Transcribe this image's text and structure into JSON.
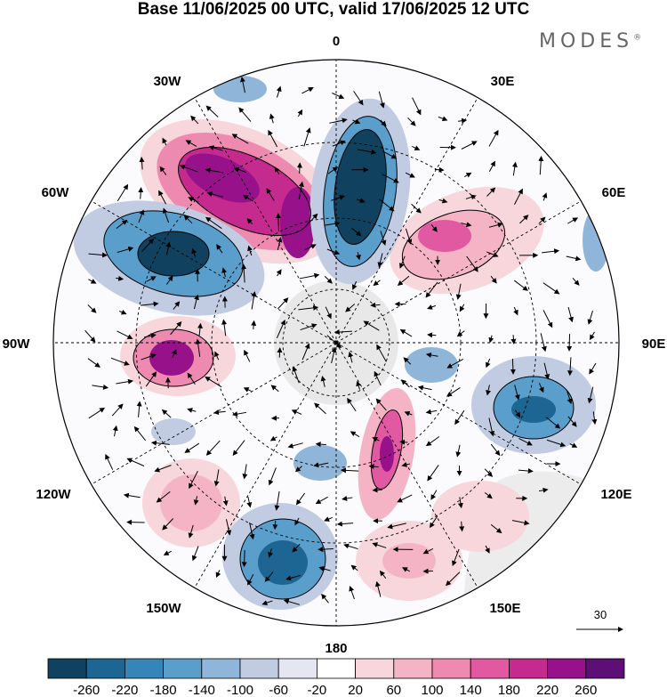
{
  "title": "Base 11/06/2025 00 UTC, valid 17/06/2025 12 UTC",
  "brand": {
    "name": "MODES",
    "mark": "®"
  },
  "longitude_labels": {
    "north": "0",
    "n30e": "30E",
    "n60e": "60E",
    "east": "90E",
    "s120e": "120E",
    "s150e": "150E",
    "south": "180",
    "s150w": "150W",
    "s120w": "120W",
    "west": "90W",
    "n60w": "60W",
    "n30w": "30W"
  },
  "wind_reference": {
    "value": "30"
  },
  "colorbar": {
    "labels": [
      "-260",
      "-220",
      "-180",
      "-140",
      "-100",
      "-60",
      "-20",
      "20",
      "60",
      "100",
      "140",
      "180",
      "220",
      "260"
    ],
    "colors": [
      "#10415e",
      "#1d6593",
      "#3585b9",
      "#5a9fcb",
      "#8fb6d8",
      "#c1cce3",
      "#e4e6f2",
      "#ffffff",
      "#f7d6dc",
      "#f4b4c6",
      "#ee8ab0",
      "#e15aa1",
      "#c52a8e",
      "#97118b",
      "#5d0f76"
    ]
  },
  "palette": {
    "ocean_neutral": "#ffffff",
    "land": "#e3e3e3"
  }
}
